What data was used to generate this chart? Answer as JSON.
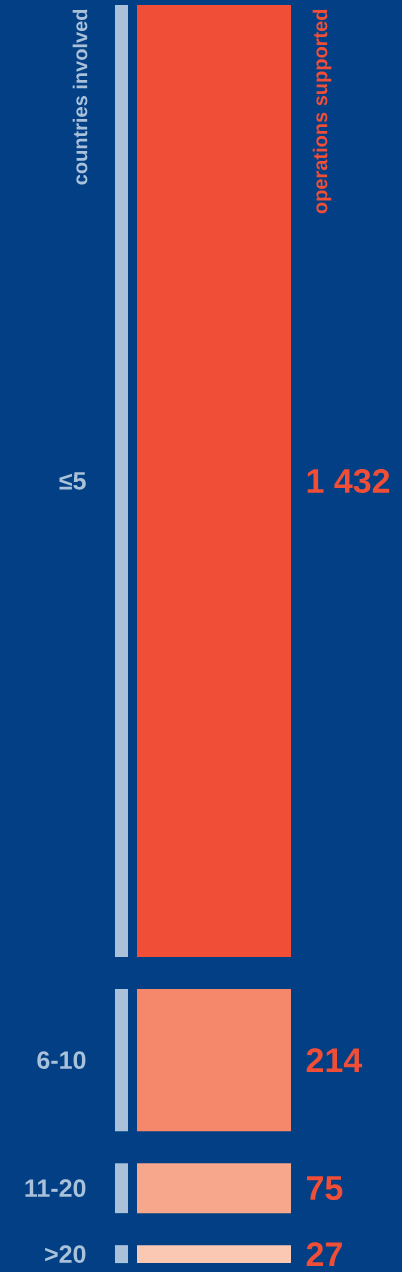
{
  "chart_data": {
    "type": "other",
    "xlabel": "countries involved",
    "ylabel": "operations supported",
    "categories": [
      "≤5",
      "6-10",
      "11-20",
      ">20"
    ],
    "values": [
      1432,
      214,
      75,
      27
    ],
    "value_labels": [
      "1 432",
      "214",
      "75",
      "27"
    ],
    "colors": [
      "#f04e37",
      "#f5876a",
      "#f7a78c",
      "#fbc8b4"
    ]
  }
}
